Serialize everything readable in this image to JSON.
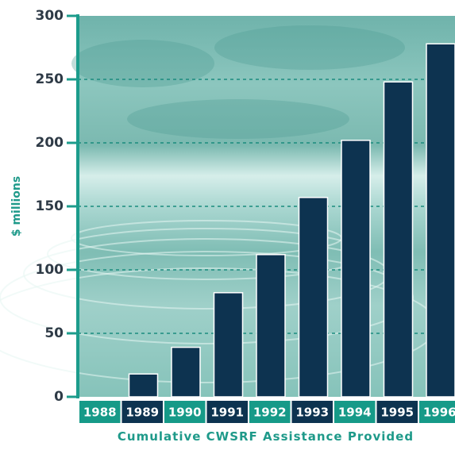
{
  "colors": {
    "bar": "#0d3350",
    "bar_stroke": "#ffffff",
    "axis": "#1c9c8c",
    "label_teal": "#169a88",
    "label_navy": "#0d3350",
    "water_light": "#bfe2de",
    "water_dark": "#5da79f"
  },
  "chart_data": {
    "type": "bar",
    "title": "Cumulative CWSRF Assistance Provided",
    "xlabel": "",
    "ylabel": "$ millions",
    "categories": [
      "1988",
      "1989",
      "1990",
      "1991",
      "1992",
      "1993",
      "1994",
      "1995",
      "1996"
    ],
    "values": [
      0,
      18,
      39,
      82,
      112,
      157,
      202,
      248,
      278
    ],
    "ylim": [
      0,
      300
    ],
    "yticks": [
      "0",
      "50",
      "100",
      "150",
      "200",
      "250",
      "300"
    ],
    "grid": true
  }
}
